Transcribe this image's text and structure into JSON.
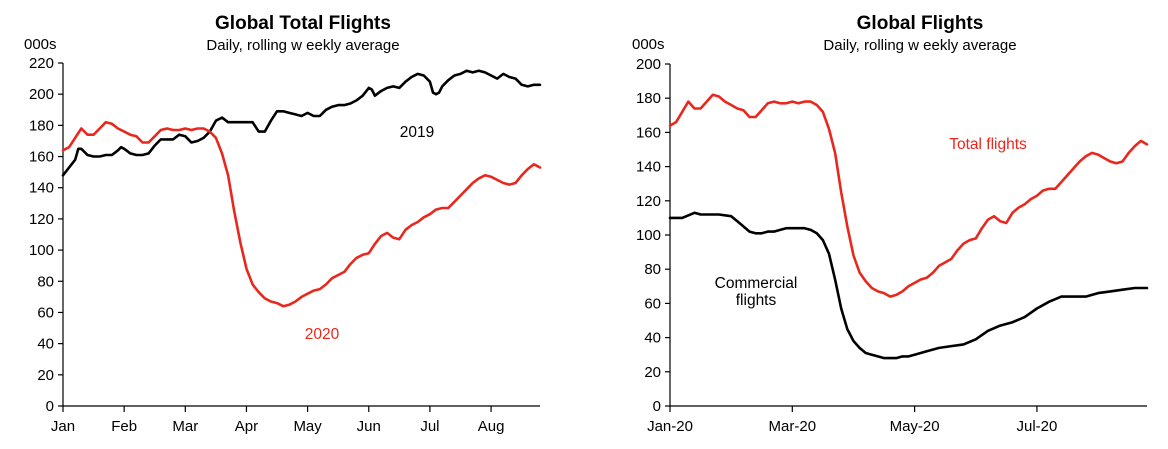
{
  "chart_data": [
    {
      "type": "line",
      "title": "Global Total Flights",
      "subtitle": "Daily,  rolling w eekly average",
      "unit_label": "000s",
      "ylim": [
        0,
        220
      ],
      "yticks": [
        0,
        20,
        40,
        60,
        80,
        100,
        120,
        140,
        160,
        180,
        200,
        220
      ],
      "xlim": [
        0,
        7.8
      ],
      "x_tick_labels": [
        "Jan",
        "Feb",
        "Mar",
        "Apr",
        "May",
        "Jun",
        "Jul",
        "Aug"
      ],
      "x_tick_positions": [
        0,
        1,
        2,
        3,
        4,
        5,
        6,
        7
      ],
      "grid": false,
      "series": [
        {
          "name": "2019",
          "color": "#000000",
          "x": [
            0,
            0.1,
            0.2,
            0.25,
            0.3,
            0.4,
            0.5,
            0.6,
            0.7,
            0.8,
            0.9,
            0.95,
            1.0,
            1.1,
            1.2,
            1.3,
            1.4,
            1.5,
            1.6,
            1.7,
            1.8,
            1.9,
            2.0,
            2.1,
            2.2,
            2.3,
            2.4,
            2.5,
            2.6,
            2.7,
            2.8,
            2.9,
            3.0,
            3.1,
            3.2,
            3.3,
            3.4,
            3.5,
            3.6,
            3.7,
            3.8,
            3.9,
            4.0,
            4.1,
            4.2,
            4.3,
            4.4,
            4.5,
            4.6,
            4.7,
            4.8,
            4.9,
            5.0,
            5.05,
            5.1,
            5.2,
            5.3,
            5.4,
            5.5,
            5.6,
            5.7,
            5.8,
            5.9,
            6.0,
            6.05,
            6.1,
            6.15,
            6.2,
            6.3,
            6.4,
            6.5,
            6.6,
            6.7,
            6.8,
            6.9,
            7.0,
            7.1,
            7.2,
            7.3,
            7.4,
            7.5,
            7.6,
            7.7,
            7.8
          ],
          "values": [
            148,
            153,
            158,
            165,
            165,
            161,
            160,
            160,
            161,
            161,
            164,
            166,
            165,
            162,
            161,
            161,
            162,
            167,
            171,
            171,
            171,
            174,
            173,
            169,
            170,
            172,
            176,
            183,
            185,
            182,
            182,
            182,
            182,
            182,
            176,
            176,
            183,
            189,
            189,
            188,
            187,
            186,
            188,
            186,
            186,
            190,
            192,
            193,
            193,
            194,
            196,
            199,
            204,
            203,
            199,
            202,
            204,
            205,
            204,
            208,
            211,
            213,
            212,
            208,
            201,
            200,
            201,
            205,
            209,
            212,
            213,
            215,
            214,
            215,
            214,
            212,
            210,
            213,
            211,
            210,
            206,
            205,
            206,
            206
          ]
        },
        {
          "name": "2020",
          "color": "#e8281e",
          "x": [
            0,
            0.1,
            0.2,
            0.3,
            0.4,
            0.5,
            0.6,
            0.7,
            0.8,
            0.9,
            1.0,
            1.1,
            1.2,
            1.3,
            1.4,
            1.5,
            1.6,
            1.7,
            1.8,
            1.9,
            2.0,
            2.1,
            2.2,
            2.3,
            2.4,
            2.5,
            2.6,
            2.7,
            2.8,
            2.9,
            3.0,
            3.1,
            3.2,
            3.3,
            3.4,
            3.5,
            3.6,
            3.7,
            3.8,
            3.9,
            4.0,
            4.1,
            4.2,
            4.3,
            4.4,
            4.5,
            4.6,
            4.7,
            4.8,
            4.9,
            5.0,
            5.1,
            5.2,
            5.3,
            5.4,
            5.5,
            5.6,
            5.7,
            5.8,
            5.9,
            6.0,
            6.1,
            6.2,
            6.3,
            6.4,
            6.5,
            6.6,
            6.7,
            6.8,
            6.9,
            7.0,
            7.1,
            7.2,
            7.3,
            7.4,
            7.5,
            7.6,
            7.7,
            7.8
          ],
          "values": [
            164,
            166,
            172,
            178,
            174,
            174,
            178,
            182,
            181,
            178,
            176,
            174,
            173,
            169,
            169,
            173,
            177,
            178,
            177,
            177,
            178,
            177,
            178,
            178,
            176,
            172,
            162,
            148,
            125,
            105,
            88,
            78,
            73,
            69,
            67,
            66,
            64,
            65,
            67,
            70,
            72,
            74,
            75,
            78,
            82,
            84,
            86,
            91,
            95,
            97,
            98,
            104,
            109,
            111,
            108,
            107,
            113,
            116,
            118,
            121,
            123,
            126,
            127,
            127,
            131,
            135,
            139,
            143,
            146,
            148,
            147,
            145,
            143,
            142,
            143,
            148,
            152,
            155,
            153
          ]
        }
      ],
      "annotations": [
        {
          "text": "2019",
          "color": "#000000"
        },
        {
          "text": "2020",
          "color": "#e8281e"
        }
      ]
    },
    {
      "type": "line",
      "title": "Global Flights",
      "subtitle": "Daily,  rolling w eekly average",
      "unit_label": "000s",
      "ylim": [
        0,
        200
      ],
      "yticks": [
        0,
        20,
        40,
        60,
        80,
        100,
        120,
        140,
        160,
        180,
        200
      ],
      "xlim": [
        0,
        7.8
      ],
      "x_tick_labels": [
        "Jan-20",
        "Mar-20",
        "May-20",
        "Jul-20"
      ],
      "x_tick_positions": [
        0,
        2,
        4,
        6
      ],
      "grid": false,
      "series": [
        {
          "name": "Total flights",
          "color": "#e8281e",
          "x": [
            0,
            0.1,
            0.2,
            0.3,
            0.4,
            0.5,
            0.6,
            0.7,
            0.8,
            0.9,
            1.0,
            1.1,
            1.2,
            1.3,
            1.4,
            1.5,
            1.6,
            1.7,
            1.8,
            1.9,
            2.0,
            2.1,
            2.2,
            2.3,
            2.4,
            2.5,
            2.6,
            2.7,
            2.8,
            2.9,
            3.0,
            3.1,
            3.2,
            3.3,
            3.4,
            3.5,
            3.6,
            3.7,
            3.8,
            3.9,
            4.0,
            4.1,
            4.2,
            4.3,
            4.4,
            4.5,
            4.6,
            4.7,
            4.8,
            4.9,
            5.0,
            5.1,
            5.2,
            5.3,
            5.4,
            5.5,
            5.6,
            5.7,
            5.8,
            5.9,
            6.0,
            6.1,
            6.2,
            6.3,
            6.4,
            6.5,
            6.6,
            6.7,
            6.8,
            6.9,
            7.0,
            7.1,
            7.2,
            7.3,
            7.4,
            7.5,
            7.6,
            7.7,
            7.8
          ],
          "values": [
            164,
            166,
            172,
            178,
            174,
            174,
            178,
            182,
            181,
            178,
            176,
            174,
            173,
            169,
            169,
            173,
            177,
            178,
            177,
            177,
            178,
            177,
            178,
            178,
            176,
            172,
            162,
            148,
            125,
            105,
            88,
            78,
            73,
            69,
            67,
            66,
            64,
            65,
            67,
            70,
            72,
            74,
            75,
            78,
            82,
            84,
            86,
            91,
            95,
            97,
            98,
            104,
            109,
            111,
            108,
            107,
            113,
            116,
            118,
            121,
            123,
            126,
            127,
            127,
            131,
            135,
            139,
            143,
            146,
            148,
            147,
            145,
            143,
            142,
            143,
            148,
            152,
            155,
            153
          ]
        },
        {
          "name": "Commercial flights",
          "color": "#000000",
          "x": [
            0,
            0.2,
            0.4,
            0.5,
            0.6,
            0.8,
            1.0,
            1.1,
            1.2,
            1.3,
            1.4,
            1.5,
            1.6,
            1.7,
            1.8,
            1.9,
            2.0,
            2.1,
            2.2,
            2.3,
            2.4,
            2.5,
            2.6,
            2.7,
            2.8,
            2.9,
            3.0,
            3.1,
            3.2,
            3.3,
            3.4,
            3.5,
            3.6,
            3.7,
            3.8,
            3.9,
            4.0,
            4.2,
            4.4,
            4.6,
            4.8,
            5.0,
            5.2,
            5.4,
            5.6,
            5.8,
            6.0,
            6.2,
            6.4,
            6.6,
            6.8,
            7.0,
            7.2,
            7.4,
            7.6,
            7.8
          ],
          "values": [
            110,
            110,
            113,
            112,
            112,
            112,
            111,
            108,
            105,
            102,
            101,
            101,
            102,
            102,
            103,
            104,
            104,
            104,
            104,
            103,
            101,
            97,
            89,
            74,
            57,
            45,
            38,
            34,
            31,
            30,
            29,
            28,
            28,
            28,
            29,
            29,
            30,
            32,
            34,
            35,
            36,
            39,
            44,
            47,
            49,
            52,
            57,
            61,
            64,
            64,
            64,
            66,
            67,
            68,
            69,
            69
          ]
        }
      ],
      "annotations": [
        {
          "text": "Total flights",
          "color": "#e8281e"
        },
        {
          "text": "Commercial",
          "color": "#000000"
        },
        {
          "text": "flights",
          "color": "#000000"
        }
      ]
    }
  ]
}
